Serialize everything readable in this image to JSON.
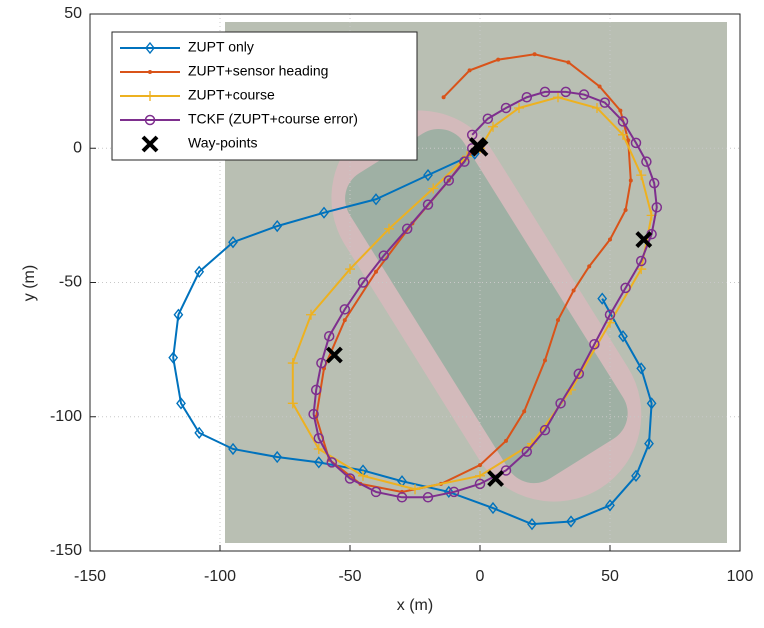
{
  "chart_data": {
    "type": "line",
    "xlabel": "x (m)",
    "ylabel": "y (m)",
    "xlim": [
      -150,
      100
    ],
    "ylim": [
      -150,
      50
    ],
    "xticks": [
      -150,
      -100,
      -50,
      0,
      50,
      100
    ],
    "yticks": [
      -150,
      -100,
      -50,
      0,
      50
    ],
    "grid": true,
    "legend": "upper left",
    "series": [
      {
        "name": "ZUPT only",
        "color": "#0072bd",
        "marker": "diamond",
        "line_style": "solid",
        "x": [
          -2,
          -20,
          -40,
          -60,
          -78,
          -95,
          -108,
          -116,
          -118,
          -115,
          -108,
          -95,
          -78,
          -62,
          -45,
          -30,
          -12,
          5,
          20,
          35,
          50,
          60,
          65,
          66,
          62,
          55,
          47
        ],
        "values": [
          -2,
          -10,
          -19,
          -24,
          -29,
          -35,
          -46,
          -62,
          -78,
          -95,
          -106,
          -112,
          -115,
          -117,
          -120,
          -124,
          -128,
          -134,
          -140,
          -139,
          -133,
          -122,
          -110,
          -95,
          -82,
          -70,
          -56
        ]
      },
      {
        "name": "ZUPT+sensor heading",
        "color": "#d95319",
        "marker": "dot",
        "line_style": "solid",
        "x": [
          -14,
          -4,
          7,
          21,
          34,
          46,
          54,
          57,
          58,
          56,
          50,
          42,
          36,
          30,
          25,
          17,
          10,
          0,
          -15,
          -30,
          -46,
          -58,
          -63,
          -60,
          -52,
          -40,
          -26,
          -12,
          -4
        ],
        "values": [
          19,
          29,
          33,
          35,
          32,
          23,
          14,
          3,
          -12,
          -23,
          -34,
          -44,
          -53,
          -64,
          -79,
          -98,
          -109,
          -118,
          -125,
          -128,
          -125,
          -116,
          -100,
          -82,
          -64,
          -46,
          -28,
          -12,
          -2
        ]
      },
      {
        "name": "ZUPT+course",
        "color": "#edb120",
        "marker": "plus",
        "line_style": "solid",
        "x": [
          0,
          5,
          15,
          30,
          45,
          55,
          62,
          66,
          62,
          50,
          35,
          20,
          0,
          -25,
          -45,
          -62,
          -72,
          -72,
          -65,
          -50,
          -35,
          -18,
          -5
        ],
        "values": [
          0,
          8,
          15,
          19,
          15,
          5,
          -10,
          -25,
          -45,
          -65,
          -90,
          -110,
          -122,
          -127,
          -122,
          -112,
          -95,
          -80,
          -62,
          -45,
          -30,
          -15,
          -3
        ]
      },
      {
        "name": "TCKF (ZUPT+course error)",
        "color": "#7e2f8e",
        "marker": "circle",
        "line_style": "solid",
        "x": [
          -3,
          3,
          10,
          18,
          25,
          33,
          40,
          48,
          55,
          60,
          64,
          67,
          68,
          66,
          62,
          56,
          50,
          44,
          38,
          31,
          25,
          18,
          10,
          0,
          -10,
          -20,
          -30,
          -40,
          -50,
          -57,
          -62,
          -64,
          -63,
          -61,
          -58,
          -52,
          -45,
          -37,
          -28,
          -20,
          -12,
          -6,
          -3
        ],
        "values": [
          5,
          11,
          15,
          19,
          21,
          21,
          20,
          17,
          10,
          2,
          -5,
          -13,
          -22,
          -32,
          -42,
          -52,
          -62,
          -73,
          -84,
          -95,
          -105,
          -113,
          -120,
          -125,
          -128,
          -130,
          -130,
          -128,
          -123,
          -117,
          -108,
          -99,
          -90,
          -80,
          -70,
          -60,
          -50,
          -40,
          -30,
          -21,
          -12,
          -5,
          0
        ]
      },
      {
        "name": "Way-points",
        "color": "#000000",
        "marker": "x",
        "line_style": "none",
        "x": [
          0,
          -1,
          63,
          -56,
          6
        ],
        "values": [
          0,
          1,
          -34,
          -77,
          -123
        ]
      }
    ]
  }
}
